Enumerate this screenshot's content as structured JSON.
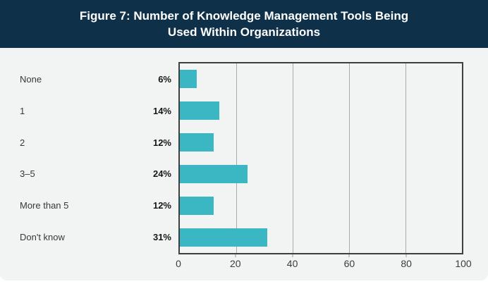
{
  "header": {
    "title": "Figure 7: Number of Knowledge Management Tools Being Used Within Organizations"
  },
  "colors": {
    "header_bg": "#0E3048",
    "header_text": "#FFFFFF",
    "card_bg": "#F2F3F3",
    "bar": "#3BB6C3",
    "plot_border": "#3F3F3F",
    "gridline": "#AAAAAA",
    "category_text": "#383838",
    "value_text": "#161616",
    "axis_text": "#3C3C3C"
  },
  "chart_data": {
    "type": "bar",
    "orientation": "horizontal",
    "title": "Figure 7: Number of Knowledge Management Tools Being Used Within Organizations",
    "categories": [
      "None",
      "1",
      "2",
      "3–5",
      "More than 5",
      "Don't know"
    ],
    "values": [
      6,
      14,
      12,
      24,
      12,
      31
    ],
    "value_labels": [
      "6%",
      "14%",
      "12%",
      "24%",
      "12%",
      "31%"
    ],
    "xlabel": "",
    "ylabel": "",
    "xlim": [
      0,
      100
    ],
    "xticks": [
      0,
      20,
      40,
      60,
      80,
      100
    ],
    "grid": true,
    "legend": false,
    "bar_color": "#3BB6C3"
  }
}
